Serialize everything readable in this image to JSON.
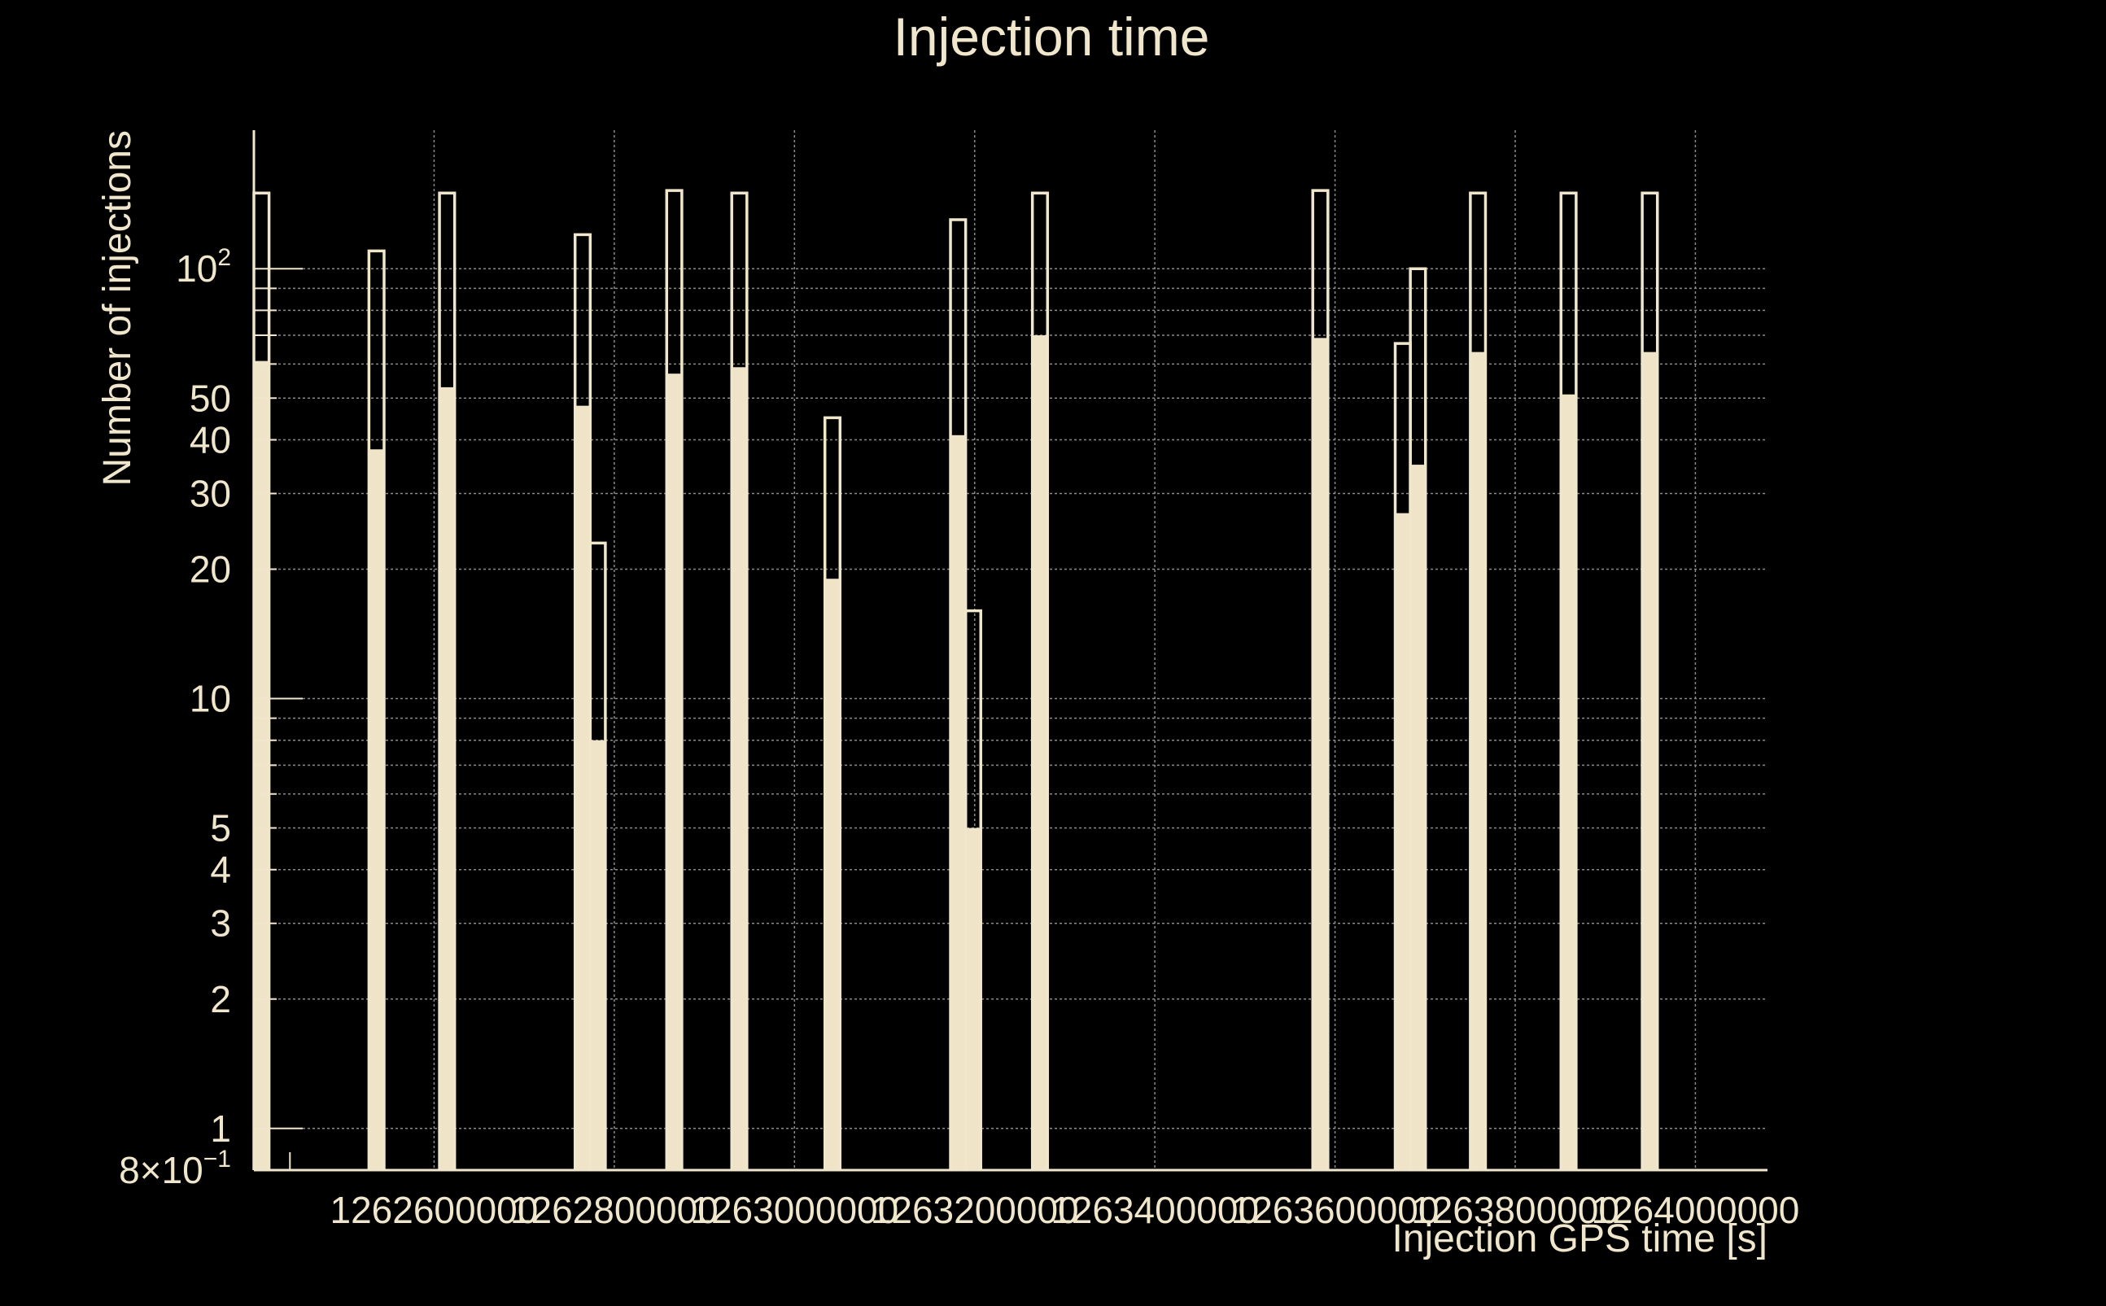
{
  "chart_data": {
    "type": "bar",
    "title": "Injection time",
    "xlabel": "Injection GPS time [s]",
    "ylabel": "Number of injections",
    "yscale": "log",
    "ylim": [
      0.8,
      210
    ],
    "xlim": [
      1262400000,
      1264080000
    ],
    "grid": true,
    "colors": {
      "background": "#000000",
      "foreground": "#f0e6cc",
      "fill": "#efe4c8",
      "grid": "#8a8a8a"
    },
    "x_ticks": [
      {
        "value": 1262600000,
        "label": "1262600000"
      },
      {
        "value": 1262800000,
        "label": "1262800000"
      },
      {
        "value": 1263000000,
        "label": "1263000000"
      },
      {
        "value": 1263200000,
        "label": "1263200000"
      },
      {
        "value": 1263400000,
        "label": "1263400000"
      },
      {
        "value": 1263600000,
        "label": "1263600000"
      },
      {
        "value": 1263800000,
        "label": "1263800000"
      },
      {
        "value": 1264000000,
        "label": "1264000000"
      }
    ],
    "y_major_ticks": [
      {
        "value": 0.8,
        "label": "8×10",
        "sup": "−1"
      },
      {
        "value": 1,
        "label": "1",
        "sup": ""
      },
      {
        "value": 2,
        "label": "2",
        "sup": ""
      },
      {
        "value": 3,
        "label": "3",
        "sup": ""
      },
      {
        "value": 4,
        "label": "4",
        "sup": ""
      },
      {
        "value": 5,
        "label": "5",
        "sup": ""
      },
      {
        "value": 10,
        "label": "10",
        "sup": ""
      },
      {
        "value": 20,
        "label": "20",
        "sup": ""
      },
      {
        "value": 30,
        "label": "30",
        "sup": ""
      },
      {
        "value": 40,
        "label": "40",
        "sup": ""
      },
      {
        "value": 50,
        "label": "50",
        "sup": ""
      },
      {
        "value": 100,
        "label": "10",
        "sup": "2"
      }
    ],
    "y_grid_values": [
      1,
      2,
      3,
      4,
      5,
      6,
      7,
      8,
      9,
      10,
      20,
      30,
      40,
      50,
      60,
      70,
      80,
      90,
      100
    ],
    "bin_edges": [
      1262400000,
      1262416800,
      1262527700,
      1262544500,
      1262606000,
      1262622800,
      1262756500,
      1262773300,
      1262790100,
      1262858200,
      1262875000,
      1262930400,
      1262947200,
      1263033800,
      1263050600,
      1263173200,
      1263190000,
      1263206800,
      1263264100,
      1263280900,
      1263575300,
      1263592100,
      1263666800,
      1263683600,
      1263700400,
      1263750200,
      1263767000,
      1263850800,
      1263867600,
      1263941000,
      1263957800
    ],
    "series": [
      {
        "name": "",
        "style": "step-outline",
        "values": [
          150,
          0,
          110,
          0,
          150,
          0,
          120,
          23,
          0,
          152,
          0,
          150,
          0,
          45,
          0,
          130,
          16,
          0,
          150,
          0,
          152,
          0,
          67,
          100,
          0,
          150,
          0,
          150,
          0,
          150
        ]
      },
      {
        "name": "",
        "style": "filled",
        "values": [
          61,
          0,
          38,
          0,
          53,
          0,
          48,
          8,
          0,
          57,
          0,
          59,
          0,
          19,
          0,
          41,
          5,
          0,
          70,
          0,
          69,
          0,
          27,
          35,
          0,
          64,
          0,
          51,
          0,
          64
        ]
      }
    ]
  }
}
